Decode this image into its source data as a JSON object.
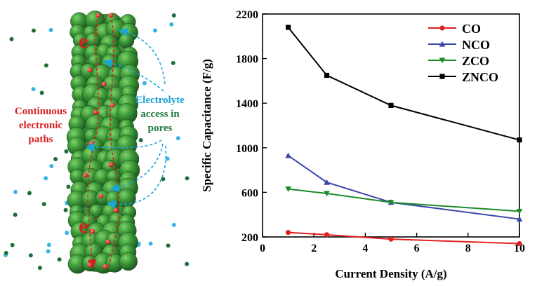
{
  "schematic": {
    "label_continuous": [
      "Continuous",
      "electronic",
      "paths"
    ],
    "label_electrolyte": [
      "Electrolyte",
      "access in",
      "pores"
    ],
    "electron_symbol": "e",
    "electron_charge": "-"
  },
  "chart_data": {
    "type": "line",
    "xlabel": "Current Density (A/g)",
    "ylabel": "Specific Capacitance (F/g)",
    "xlim": [
      0,
      10
    ],
    "ylim": [
      200,
      2200
    ],
    "xticks": [
      0,
      2,
      4,
      6,
      8,
      10
    ],
    "yticks": [
      200,
      600,
      1000,
      1400,
      1800,
      2200
    ],
    "grid": false,
    "legend_position": "top-right",
    "x": [
      1,
      2.5,
      5,
      10
    ],
    "series": [
      {
        "name": "CO",
        "color": "#e02020",
        "marker": "circle",
        "values": [
          240,
          220,
          180,
          140
        ]
      },
      {
        "name": "NCO",
        "color": "#3a45a8",
        "marker": "triangle-up",
        "values": [
          930,
          690,
          510,
          360
        ]
      },
      {
        "name": "ZCO",
        "color": "#1e8a2a",
        "marker": "triangle-down",
        "values": [
          630,
          590,
          510,
          430
        ]
      },
      {
        "name": "ZNCO",
        "color": "#000000",
        "marker": "square",
        "values": [
          2080,
          1650,
          1380,
          1070
        ]
      }
    ]
  }
}
